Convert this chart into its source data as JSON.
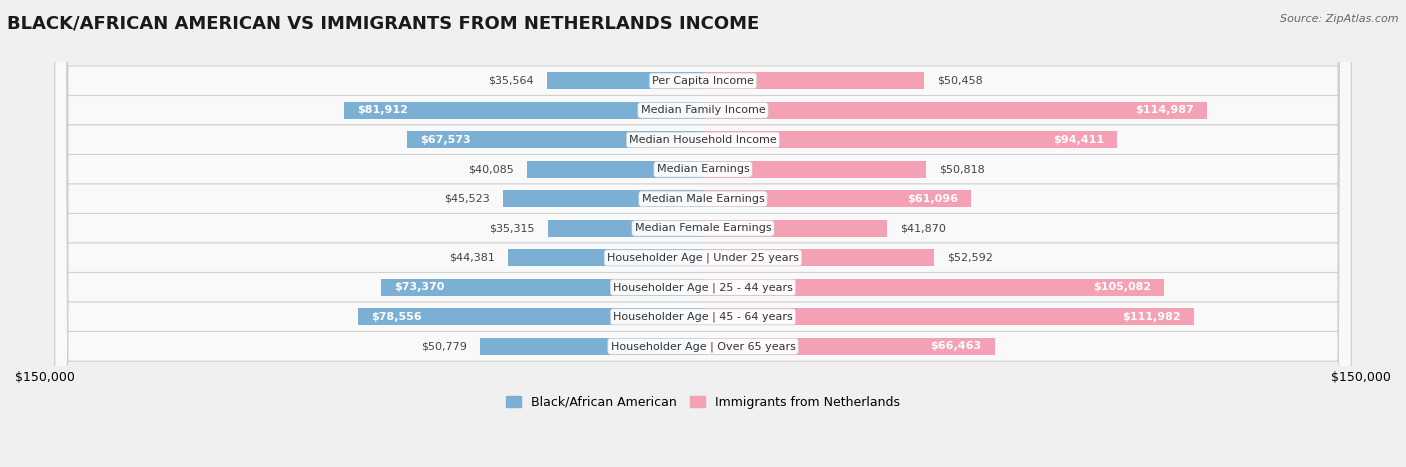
{
  "title": "BLACK/AFRICAN AMERICAN VS IMMIGRANTS FROM NETHERLANDS INCOME",
  "source": "Source: ZipAtlas.com",
  "categories": [
    "Per Capita Income",
    "Median Family Income",
    "Median Household Income",
    "Median Earnings",
    "Median Male Earnings",
    "Median Female Earnings",
    "Householder Age | Under 25 years",
    "Householder Age | 25 - 44 years",
    "Householder Age | 45 - 64 years",
    "Householder Age | Over 65 years"
  ],
  "black_values": [
    35564,
    81912,
    67573,
    40085,
    45523,
    35315,
    44381,
    73370,
    78556,
    50779
  ],
  "netherlands_values": [
    50458,
    114987,
    94411,
    50818,
    61096,
    41870,
    52592,
    105082,
    111982,
    66463
  ],
  "black_color": "#7bafd4",
  "netherlands_color": "#f4a0b5",
  "axis_limit": 150000,
  "bar_height": 0.58,
  "background_color": "#f0f0f0",
  "row_bg_light": "#f9f9f9",
  "row_border_color": "#d0d0d0",
  "legend_label_black": "Black/African American",
  "legend_label_netherlands": "Immigrants from Netherlands",
  "title_fontsize": 13,
  "source_fontsize": 8,
  "tick_fontsize": 9,
  "value_fontsize": 8,
  "category_fontsize": 8,
  "white_text_threshold": 55000,
  "cat_bg_color": "white",
  "cat_border_color": "#cccccc"
}
